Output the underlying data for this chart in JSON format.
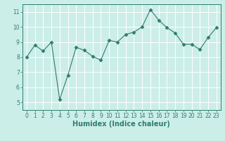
{
  "x": [
    0,
    1,
    2,
    3,
    4,
    5,
    6,
    7,
    8,
    9,
    10,
    11,
    12,
    13,
    14,
    15,
    16,
    17,
    18,
    19,
    20,
    21,
    22,
    23
  ],
  "y": [
    8.0,
    8.8,
    8.4,
    9.0,
    5.2,
    6.8,
    8.65,
    8.45,
    8.05,
    7.8,
    9.1,
    9.0,
    9.5,
    9.65,
    10.0,
    11.15,
    10.45,
    9.95,
    9.6,
    8.85,
    8.85,
    8.5,
    9.3,
    9.95
  ],
  "line_color": "#2e7d6e",
  "marker": "D",
  "marker_size": 2.5,
  "bg_color": "#cceee8",
  "grid_color": "#ffffff",
  "xlabel": "Humidex (Indice chaleur)",
  "ylim": [
    4.5,
    11.5
  ],
  "xlim": [
    -0.5,
    23.5
  ],
  "yticks": [
    5,
    6,
    7,
    8,
    9,
    10,
    11
  ],
  "xtick_labels": [
    "0",
    "1",
    "2",
    "3",
    "4",
    "5",
    "6",
    "7",
    "8",
    "9",
    "10",
    "11",
    "12",
    "13",
    "14",
    "15",
    "16",
    "17",
    "18",
    "19",
    "20",
    "21",
    "22",
    "23"
  ],
  "tick_color": "#2e7d6e",
  "label_color": "#2e7d6e",
  "xlabel_fontsize": 7,
  "tick_fontsize": 5.5,
  "spine_color": "#2e7d6e"
}
